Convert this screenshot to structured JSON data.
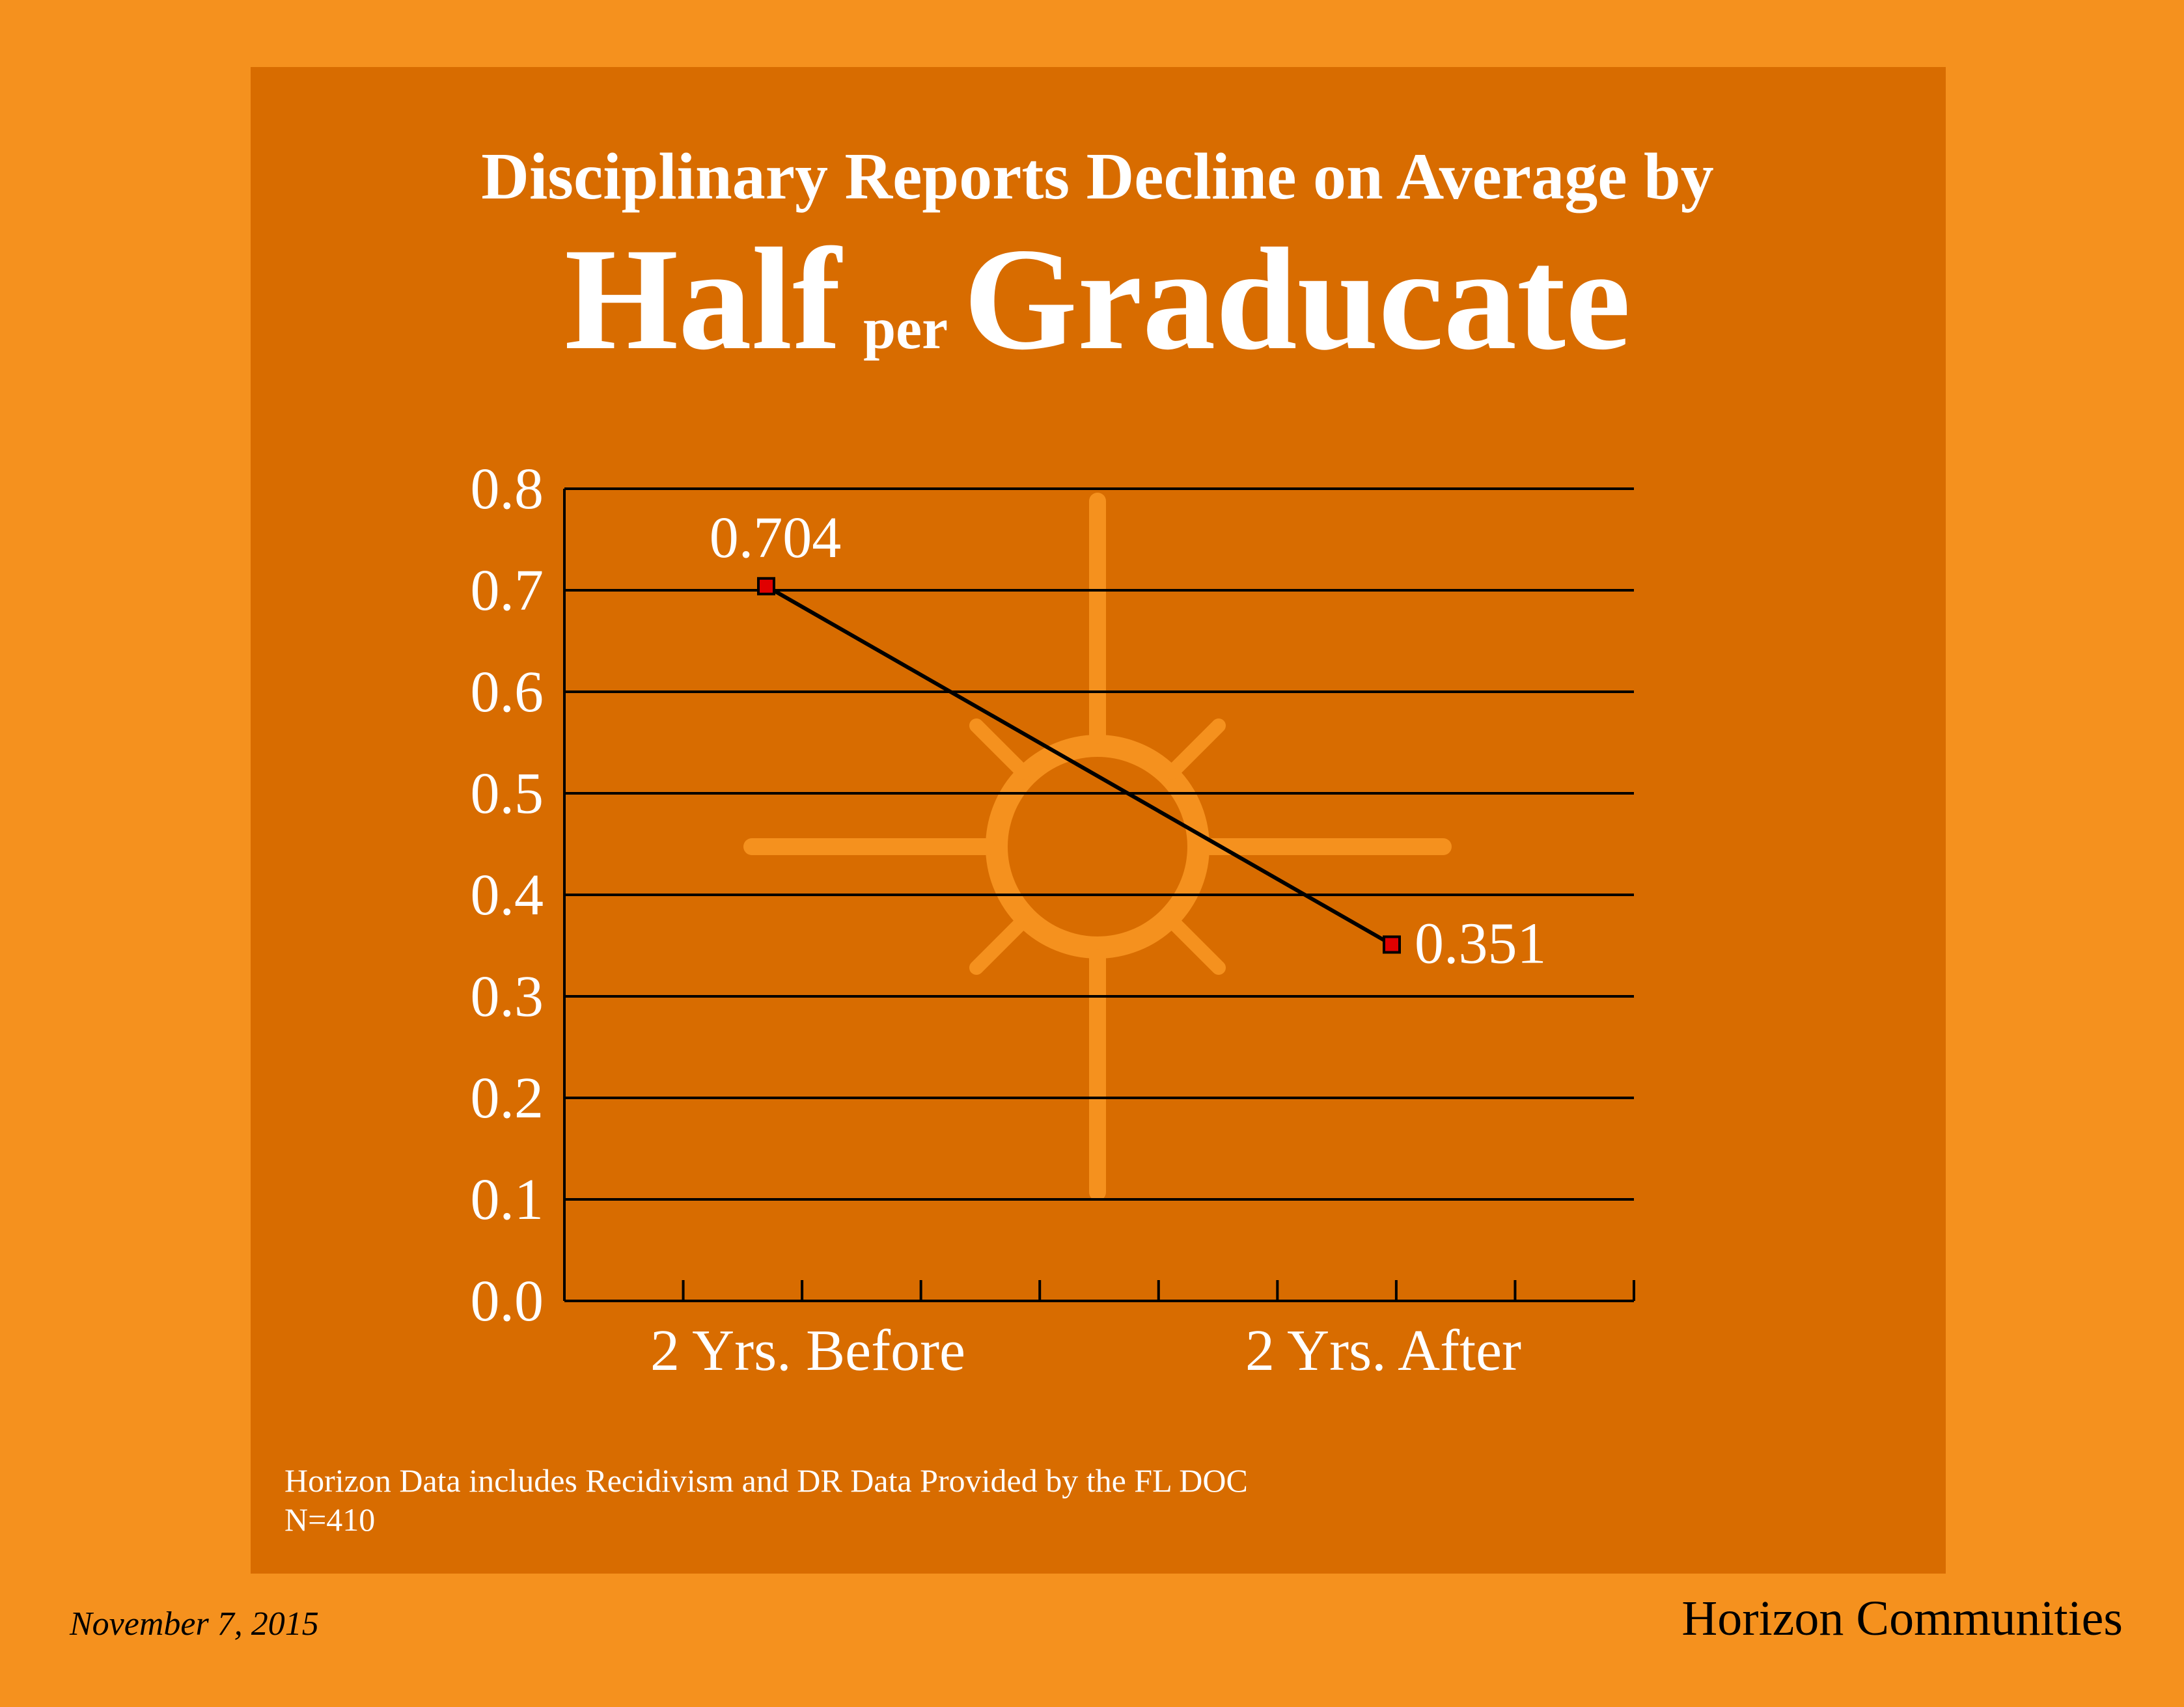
{
  "chart_data": {
    "type": "line",
    "title": "Disciplinary Reports Decline on Average by",
    "title_emphasis": [
      "Half",
      "per",
      "Graducate"
    ],
    "categories": [
      "2 Yrs. Before",
      "2 Yrs. After"
    ],
    "values": [
      0.704,
      0.351
    ],
    "line_color": "#000000",
    "marker_color": "#e00000",
    "ylim": [
      0,
      0.8
    ],
    "yticks": [
      {
        "value": 0,
        "label": "0.0"
      },
      0.1,
      0.2,
      0.3,
      0.4,
      0.5,
      0.6,
      0.7,
      0.8
    ],
    "grid": true,
    "notes": [
      "Horizon Data includes Recidivism and DR Data Provided by the FL DOC",
      "N=410"
    ],
    "date": "November 7, 2015",
    "organization": "Horizon Communities"
  }
}
